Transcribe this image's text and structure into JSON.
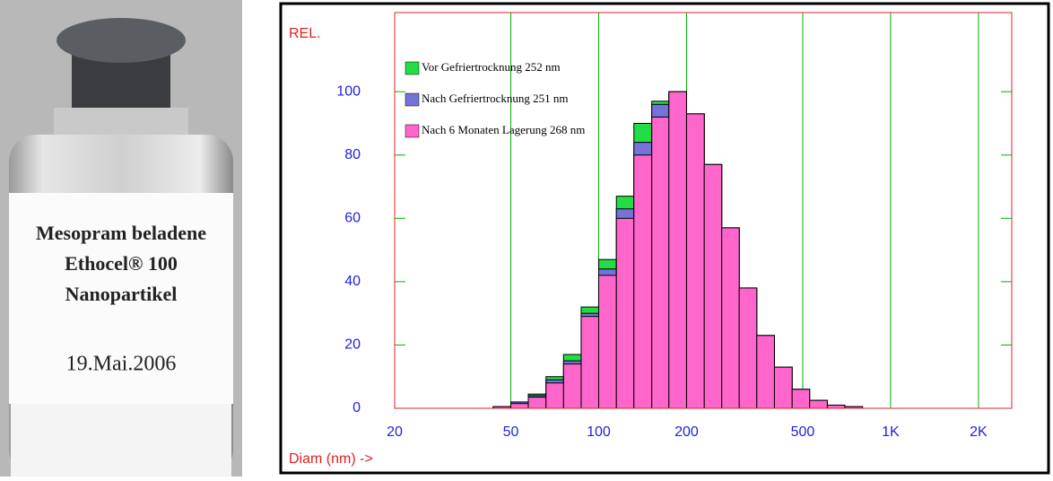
{
  "photo": {
    "label_lines": [
      "Mesopram beladene",
      "Ethocel® 100",
      "Nanopartikel"
    ],
    "date": "19.Mai.2006"
  },
  "chart_data": {
    "type": "histogram",
    "y_label": "REL.",
    "x_label": "Diam (nm) ->",
    "bins": [
      43.5,
      50,
      57.4,
      66,
      75.8,
      87.1,
      100,
      115,
      132,
      152,
      174,
      200,
      230,
      264,
      303,
      348,
      400,
      460,
      528,
      607,
      697,
      801
    ],
    "series": [
      {
        "name": "Vor Gefriertrocknung 252 nm",
        "color": "#22dd44",
        "values": [
          0.5,
          2,
          4.5,
          10,
          17,
          32,
          47,
          67,
          90,
          97,
          100,
          93,
          77,
          57,
          38,
          23,
          13,
          6,
          2.5,
          1,
          0.5
        ]
      },
      {
        "name": "Nach Gefriertrocknung 251 nm",
        "color": "#7474d8",
        "values": [
          0.5,
          2,
          4,
          9,
          15,
          30,
          44,
          63,
          84,
          96,
          100,
          93,
          77,
          57,
          38,
          23,
          13,
          6,
          2.5,
          1,
          0.5
        ]
      },
      {
        "name": "Nach 6 Monaten Lagerung 268 nm",
        "color": "#ff66cc",
        "values": [
          0.5,
          1.5,
          3.5,
          8,
          14,
          29,
          42,
          60,
          80,
          92,
          100,
          93,
          77,
          57,
          38,
          23,
          13,
          6,
          2.5,
          1,
          0.5
        ]
      }
    ],
    "log_x": true,
    "grid_x": true,
    "xlim": [
      20,
      2600
    ],
    "xticks": [
      20,
      50,
      100,
      200,
      500,
      {
        "value": 1000,
        "label": "1K"
      },
      {
        "value": 2000,
        "label": "2K"
      }
    ],
    "ylim": [
      0,
      125
    ],
    "yticks": [
      0,
      20,
      40,
      60,
      80,
      100
    ]
  }
}
